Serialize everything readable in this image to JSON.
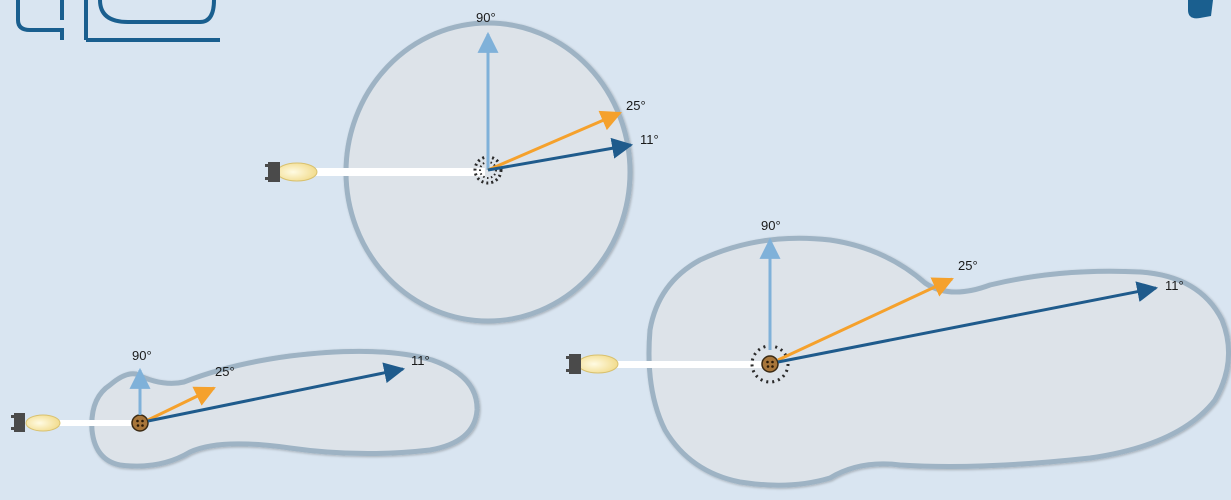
{
  "colors": {
    "background": "#d9e5f1",
    "logo_blue": "#1a5f8f",
    "region_fill": "#dde3e9",
    "region_stroke": "#9eb3c4",
    "arrow_90": "#7fb1d9",
    "arrow_25": "#f5a12c",
    "arrow_11": "#1f5b8c",
    "probe_tip": "#fdf3c4",
    "probe_base": "#4a4a4a"
  },
  "icons": {
    "logo": "company-logo-partial",
    "probe": "emitter-probe-icon",
    "source": "scatter-source-icon"
  },
  "diagrams": [
    {
      "name": "circle-pattern",
      "angle_labels": {
        "a90": "90°",
        "a25": "25°",
        "a11": "11°"
      }
    },
    {
      "name": "small-lobe-pattern",
      "angle_labels": {
        "a90": "90°",
        "a25": "25°",
        "a11": "11°"
      }
    },
    {
      "name": "large-lobe-pattern",
      "angle_labels": {
        "a90": "90°",
        "a25": "25°",
        "a11": "11°"
      }
    }
  ]
}
